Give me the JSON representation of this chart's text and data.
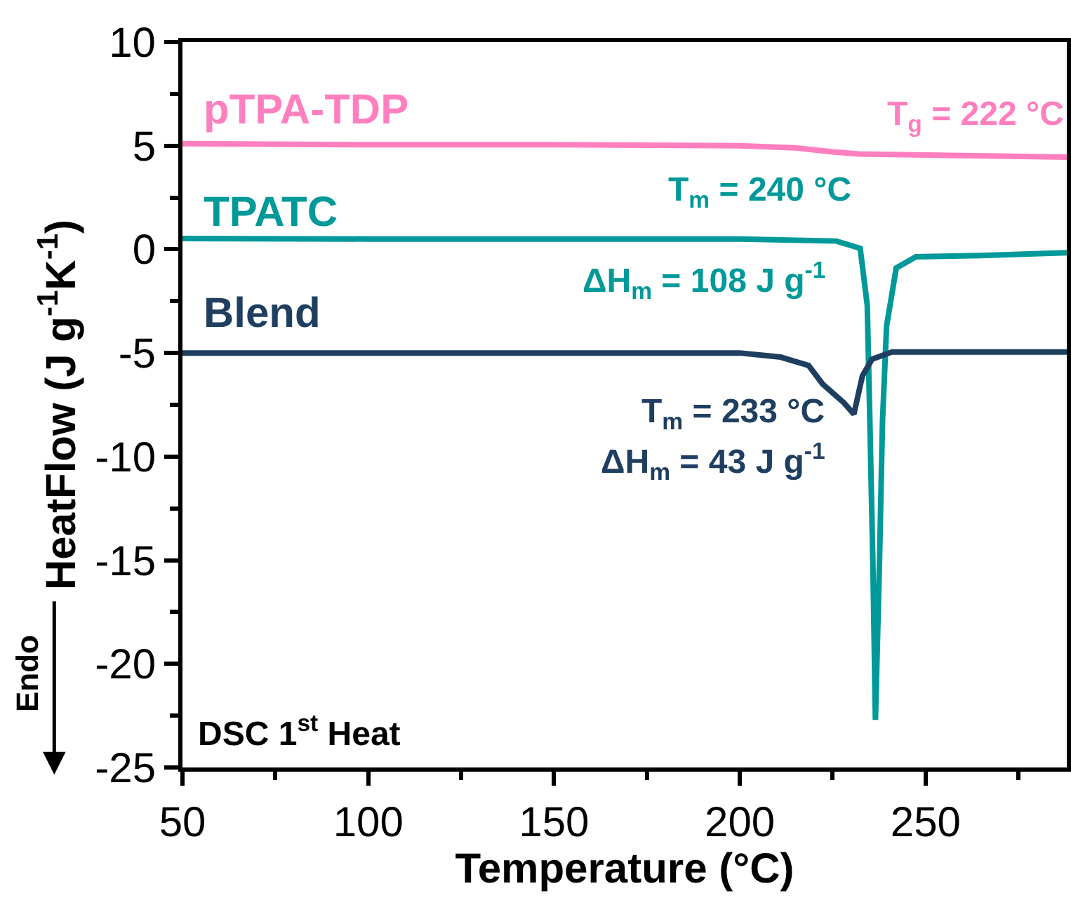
{
  "chart_data": {
    "type": "line",
    "xlabel": "Temperature (°C)",
    "ylabel": "HeatFlow (J g$^{-1}$K$^{-1}$)",
    "xlim": [
      50,
      288
    ],
    "ylim": [
      -25,
      10
    ],
    "xticks": [
      50,
      100,
      150,
      200,
      250
    ],
    "yticks": [
      -25,
      -20,
      -15,
      -10,
      -5,
      0,
      5,
      10
    ],
    "legend": false,
    "marker": "none",
    "line_style": "solid",
    "series": [
      {
        "name": "pTPA-TDP",
        "color": "#ff7fbf",
        "x": [
          50,
          100,
          150,
          200,
          215,
          225,
          232,
          250,
          270,
          288
        ],
        "values": [
          5.1,
          5.05,
          5.05,
          5.0,
          4.9,
          4.7,
          4.6,
          4.55,
          4.5,
          4.45
        ]
      },
      {
        "name": "TPATC",
        "color": "#009999",
        "x": [
          50,
          100,
          150,
          200,
          226,
          232.4,
          234.3,
          235,
          235.8,
          236.5,
          237.6,
          238.4,
          239.5,
          242.1,
          247.4,
          265,
          288
        ],
        "values": [
          0.52,
          0.5,
          0.5,
          0.5,
          0.4,
          0.05,
          -2.7,
          -8.3,
          -15,
          -22.7,
          -15,
          -8.3,
          -3.7,
          -0.9,
          -0.36,
          -0.3,
          -0.16
        ]
      },
      {
        "name": "Blend",
        "color": "#1f3f60",
        "x": [
          50,
          100,
          150,
          200,
          211,
          218.5,
          222.3,
          228,
          230.7,
          233,
          235.6,
          241,
          260,
          288
        ],
        "values": [
          -5.0,
          -5.0,
          -5.0,
          -5.0,
          -5.2,
          -5.6,
          -6.5,
          -7.4,
          -7.95,
          -6.1,
          -5.3,
          -4.95,
          -4.95,
          -4.95
        ]
      }
    ],
    "annotations": [
      "T$_{g}$ = 222 °C",
      "T$_{m}$ = 240 °C",
      "ΔH$_{m}$ = 108 J g$^{-1}$",
      "T$_{m}$ = 233 °C",
      "ΔH$_{m}$ = 43 J g$^{-1}$",
      "DSC 1$^{st}$ Heat",
      "Endo"
    ]
  }
}
